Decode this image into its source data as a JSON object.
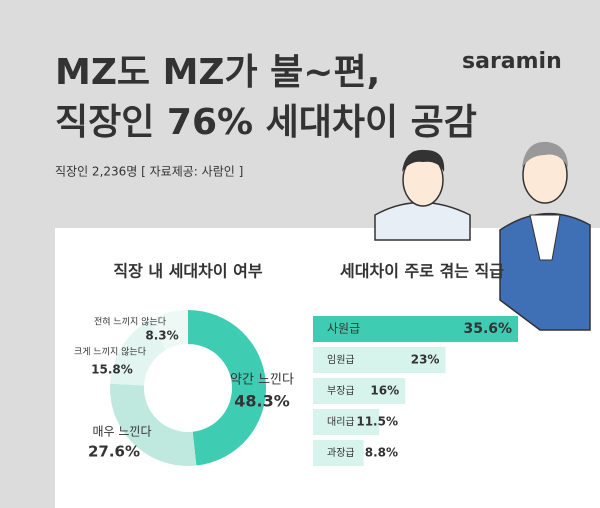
{
  "header": {
    "title_lines": [
      "MZ도 MZ가 불~편,",
      "직장인 76% 세대차이 공감"
    ],
    "subtitle": "직장인 2,236명 [ 자료제공: 사람인 ]",
    "logo": "saramin"
  },
  "chart_data": [
    {
      "type": "donut",
      "title": "직장 내 세대차이 여부",
      "categories": [
        "약간 느낀다",
        "매우 느낀다",
        "크게 느끼지 않는다",
        "전혀 느끼지 않는다"
      ],
      "values": [
        48.3,
        27.6,
        15.8,
        8.3
      ],
      "value_labels": [
        "48.3%",
        "27.6%",
        "15.8%",
        "8.3%"
      ],
      "colors": [
        "#3ecdb3",
        "#bfe9df",
        "#e2f5f0",
        "#eef9f6"
      ]
    },
    {
      "type": "hbar",
      "title": "세대차이 주로 겪는 직급",
      "categories": [
        "사원급",
        "임원급",
        "부장급",
        "대리급",
        "과장급"
      ],
      "values": [
        35.6,
        23,
        16,
        11.5,
        8.8
      ],
      "value_labels": [
        "35.6%",
        "23%",
        "16%",
        "11.5%",
        "8.8%"
      ],
      "colors": [
        "#3ecdb3",
        "#d6f3ec",
        "#d6f3ec",
        "#d6f3ec",
        "#d6f3ec"
      ]
    }
  ]
}
